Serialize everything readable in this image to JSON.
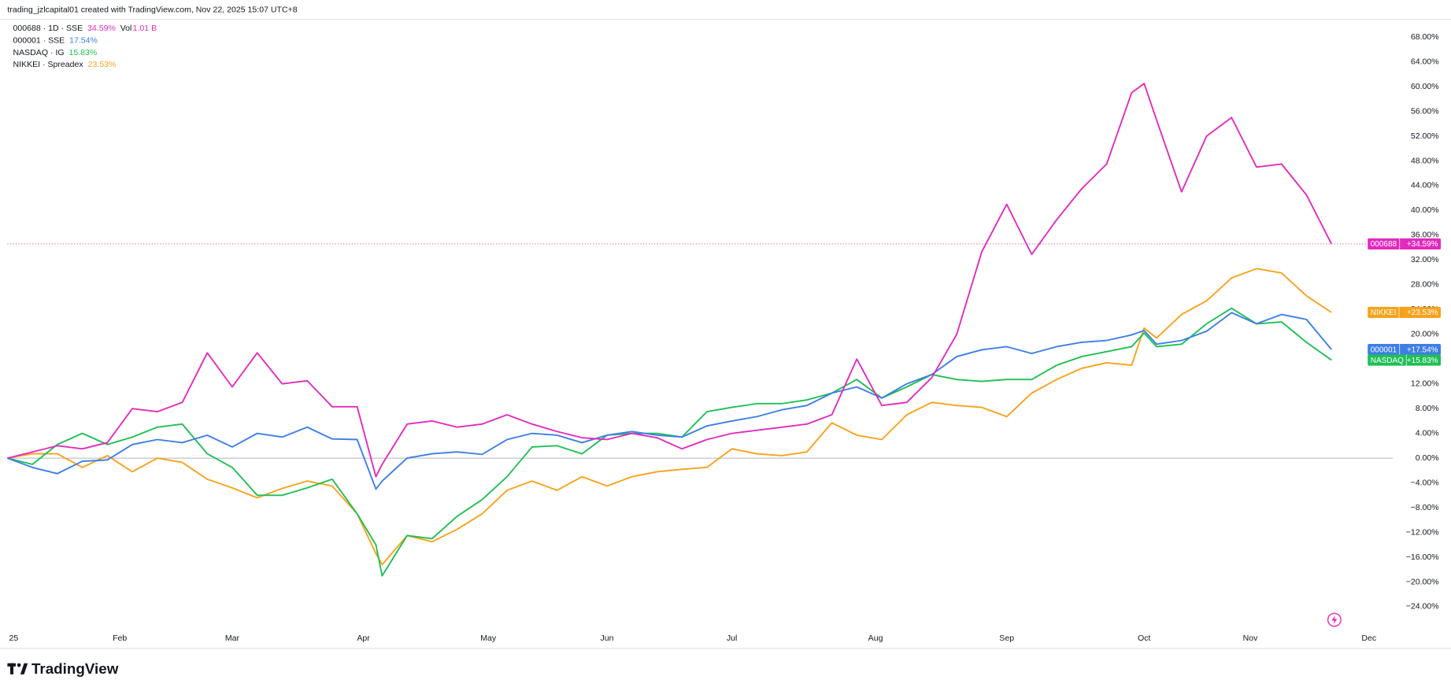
{
  "header": {
    "title": "trading_jzlcapital01 created with TradingView.com, Nov 22, 2025 15:07 UTC+8"
  },
  "footer": {
    "brand": "TradingView"
  },
  "chart_data": {
    "type": "line",
    "x": [
      0,
      4,
      8,
      12,
      16,
      20,
      24,
      28,
      32,
      36,
      40,
      44,
      48,
      52,
      56,
      59,
      60,
      64,
      68,
      72,
      76,
      80,
      84,
      88,
      92,
      96,
      100,
      104,
      108,
      112,
      116,
      120,
      124,
      128,
      132,
      136,
      140,
      144,
      148,
      152,
      156,
      160,
      164,
      168,
      172,
      176,
      180,
      182,
      184,
      188,
      192,
      196,
      200,
      204,
      208,
      212
    ],
    "xlim": [
      0,
      221.8
    ],
    "xticks": [
      {
        "value": 1,
        "label": "25"
      },
      {
        "value": 18,
        "label": "Feb"
      },
      {
        "value": 36,
        "label": "Mar"
      },
      {
        "value": 57,
        "label": "Apr"
      },
      {
        "value": 77,
        "label": "May"
      },
      {
        "value": 96,
        "label": "Jun"
      },
      {
        "value": 116,
        "label": "Jul"
      },
      {
        "value": 139,
        "label": "Aug"
      },
      {
        "value": 160,
        "label": "Sep"
      },
      {
        "value": 182,
        "label": "Oct"
      },
      {
        "value": 199,
        "label": "Nov"
      },
      {
        "value": 218,
        "label": "Dec"
      }
    ],
    "ylim": [
      -27.6,
      70.7
    ],
    "yticks": [
      {
        "value": -24,
        "label": "−24.00%"
      },
      {
        "value": -20,
        "label": "−20.00%"
      },
      {
        "value": -16,
        "label": "−16.00%"
      },
      {
        "value": -12,
        "label": "−12.00%"
      },
      {
        "value": -8,
        "label": "−8.00%"
      },
      {
        "value": -4,
        "label": "−4.00%"
      },
      {
        "value": 0,
        "label": "0.00%"
      },
      {
        "value": 4,
        "label": "4.00%"
      },
      {
        "value": 8,
        "label": "8.00%"
      },
      {
        "value": 12,
        "label": "12.00%"
      },
      {
        "value": 16,
        "label": "16.00%"
      },
      {
        "value": 20,
        "label": "20.00%"
      },
      {
        "value": 24,
        "label": "24.00%"
      },
      {
        "value": 28,
        "label": "28.00%"
      },
      {
        "value": 32,
        "label": "32.00%"
      },
      {
        "value": 36,
        "label": "36.00%"
      },
      {
        "value": 40,
        "label": "40.00%"
      },
      {
        "value": 44,
        "label": "44.00%"
      },
      {
        "value": 48,
        "label": "48.00%"
      },
      {
        "value": 52,
        "label": "52.00%"
      },
      {
        "value": 56,
        "label": "56.00%"
      },
      {
        "value": 60,
        "label": "60.00%"
      },
      {
        "value": 64,
        "label": "64.00%"
      },
      {
        "value": 68,
        "label": "68.00%"
      }
    ],
    "grid": false,
    "series": [
      {
        "name": "000688",
        "legend": "000688 · 1D · SSE",
        "last_label": "34.59%",
        "tag_value": "+34.59%",
        "volume_label": "Vol",
        "volume": "1.01 B",
        "color": "#e22bbd",
        "values": [
          0,
          1,
          2,
          1.5,
          2.5,
          8,
          7.5,
          9,
          17,
          11.5,
          17,
          12,
          12.5,
          8.3,
          8.3,
          -3,
          -1,
          5.5,
          6,
          5,
          5.5,
          7,
          5.5,
          4.3,
          3.3,
          3,
          4,
          3.3,
          1.5,
          3,
          4,
          4.5,
          5,
          5.5,
          7,
          16,
          8.5,
          9,
          13,
          20,
          33.3,
          41,
          32.9,
          38.5,
          43.5,
          47.5,
          59,
          60.5,
          54.6,
          43,
          52,
          55,
          47,
          47.5,
          42.5,
          34.59
        ]
      },
      {
        "name": "000001",
        "legend": "000001 · SSE",
        "last_label": "17.54%",
        "tag_value": "+17.54%",
        "color": "#3d7ee8",
        "values": [
          0,
          -1.5,
          -2.5,
          -0.5,
          -0.3,
          2.2,
          3,
          2.5,
          3.7,
          1.8,
          4,
          3.4,
          5,
          3.1,
          3,
          -5,
          -3.7,
          0,
          0.7,
          1,
          0.6,
          3,
          4,
          3.7,
          2.5,
          3.7,
          4.3,
          3.7,
          3.4,
          5.2,
          6,
          6.7,
          7.8,
          8.5,
          10.5,
          11.5,
          9.7,
          12,
          13.5,
          16.4,
          17.5,
          18,
          16.9,
          18,
          18.7,
          19,
          19.9,
          20.6,
          18.4,
          19,
          20.5,
          23.5,
          21.7,
          23.2,
          22.4,
          17.54
        ]
      },
      {
        "name": "NASDAQ",
        "legend": "NASDAQ · IG",
        "last_label": "15.83%",
        "tag_value": "+15.83%",
        "color": "#1fbf55",
        "values": [
          0,
          -1,
          2.2,
          4,
          2.2,
          3.4,
          5,
          5.5,
          0.7,
          -1.5,
          -6,
          -6,
          -4.8,
          -3.4,
          -9,
          -14,
          -19,
          -12.5,
          -13,
          -9.4,
          -6.7,
          -3,
          1.8,
          2,
          0.7,
          3.7,
          4,
          4,
          3.4,
          7.5,
          8.2,
          8.8,
          8.8,
          9.4,
          10.5,
          12.7,
          9.7,
          11.5,
          13.5,
          12.7,
          12.4,
          12.7,
          12.7,
          15,
          16.4,
          17.2,
          18,
          20.2,
          18,
          18.4,
          21.7,
          24.2,
          21.7,
          22,
          18.7,
          15.83
        ]
      },
      {
        "name": "NIKKEI",
        "legend": "NIKKEI · Spreadex",
        "last_label": "23.53%",
        "tag_value": "+23.53%",
        "color": "#f7a21b",
        "values": [
          0,
          0.7,
          0.7,
          -1.5,
          0.4,
          -2.2,
          0,
          -0.7,
          -3.4,
          -4.8,
          -6.4,
          -4.9,
          -3.7,
          -4.5,
          -9,
          -15.4,
          -17.2,
          -12.5,
          -13.5,
          -11.5,
          -9,
          -5.2,
          -3.7,
          -5.2,
          -3,
          -4.5,
          -3,
          -2.2,
          -1.8,
          -1.5,
          1.5,
          0.7,
          0.4,
          1,
          5.7,
          3.7,
          3,
          7,
          9,
          8.5,
          8.2,
          6.7,
          10.5,
          12.7,
          14.5,
          15.4,
          15,
          21,
          19.4,
          23.2,
          25.4,
          29.1,
          30.6,
          29.9,
          26.2,
          23.53
        ]
      }
    ]
  }
}
